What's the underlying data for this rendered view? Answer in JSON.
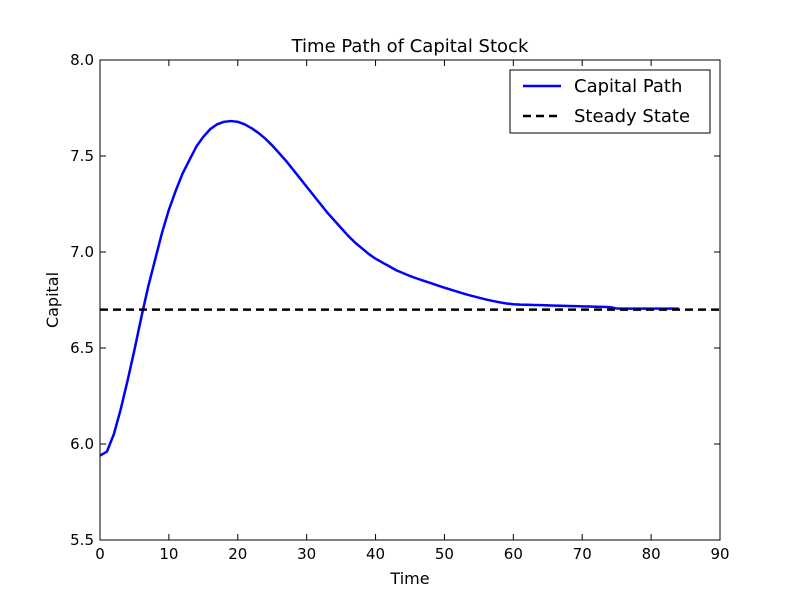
{
  "chart_data": {
    "type": "line",
    "title": "Time Path of Capital Stock",
    "xlabel": "Time",
    "ylabel": "Capital",
    "xlim": [
      0,
      90
    ],
    "ylim": [
      5.5,
      8.0
    ],
    "xticks": [
      0,
      10,
      20,
      30,
      40,
      50,
      60,
      70,
      80,
      90
    ],
    "xtick_labels": [
      "0",
      "10",
      "20",
      "30",
      "40",
      "50",
      "60",
      "70",
      "80",
      "90"
    ],
    "yticks": [
      5.5,
      6.0,
      6.5,
      7.0,
      7.5,
      8.0
    ],
    "ytick_labels": [
      "5.5",
      "6.0",
      "6.5",
      "7.0",
      "7.5",
      "8.0"
    ],
    "grid": false,
    "legend_position": "top-right",
    "series": [
      {
        "name": "Capital Path",
        "style": "solid",
        "color": "#0000ff",
        "x": [
          0,
          1,
          2,
          3,
          4,
          5,
          6,
          7,
          8,
          9,
          10,
          11,
          12,
          13,
          14,
          15,
          16,
          17,
          18,
          19,
          20,
          21,
          22,
          23,
          24,
          25,
          26,
          27,
          28,
          29,
          30,
          31,
          32,
          33,
          34,
          35,
          36,
          37,
          38,
          39,
          40,
          41,
          42,
          43,
          44,
          45,
          46,
          47,
          48,
          49,
          50,
          51,
          52,
          53,
          54,
          55,
          56,
          57,
          58,
          59,
          60,
          61,
          62,
          63,
          64,
          65,
          66,
          67,
          68,
          69,
          70,
          71,
          72,
          73,
          74,
          75,
          76,
          77,
          78,
          79,
          80,
          81,
          82,
          83,
          84
        ],
        "y": [
          5.94,
          5.96,
          6.05,
          6.18,
          6.33,
          6.49,
          6.66,
          6.82,
          6.96,
          7.1,
          7.22,
          7.32,
          7.41,
          7.48,
          7.55,
          7.6,
          7.64,
          7.665,
          7.678,
          7.682,
          7.678,
          7.665,
          7.645,
          7.62,
          7.59,
          7.555,
          7.515,
          7.475,
          7.43,
          7.385,
          7.34,
          7.295,
          7.25,
          7.205,
          7.165,
          7.125,
          7.085,
          7.05,
          7.02,
          6.99,
          6.965,
          6.945,
          6.925,
          6.905,
          6.89,
          6.875,
          6.862,
          6.85,
          6.838,
          6.826,
          6.814,
          6.803,
          6.792,
          6.781,
          6.771,
          6.762,
          6.753,
          6.745,
          6.738,
          6.732,
          6.728,
          6.726,
          6.725,
          6.724,
          6.723,
          6.722,
          6.721,
          6.72,
          6.719,
          6.718,
          6.717,
          6.716,
          6.715,
          6.714,
          6.713,
          6.706,
          6.705,
          6.705,
          6.705,
          6.705,
          6.705,
          6.705,
          6.705,
          6.705,
          6.705
        ]
      },
      {
        "name": "Steady State",
        "style": "dashed",
        "color": "#000000",
        "x": [
          0,
          90
        ],
        "y": [
          6.7,
          6.7
        ]
      }
    ]
  }
}
